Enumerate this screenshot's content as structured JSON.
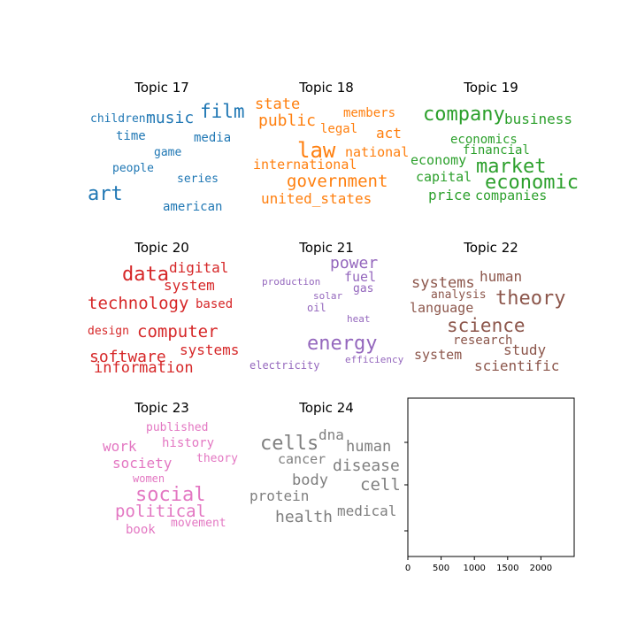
{
  "chart_data": {
    "type": "wordcloud",
    "panels": [
      {
        "title": "Topic 17",
        "color": "#1f77b4",
        "words": [
          {
            "text": "children"
          },
          {
            "text": "music"
          },
          {
            "text": "film"
          },
          {
            "text": "time"
          },
          {
            "text": "media"
          },
          {
            "text": "game"
          },
          {
            "text": "people"
          },
          {
            "text": "series"
          },
          {
            "text": "art"
          },
          {
            "text": "american"
          }
        ]
      },
      {
        "title": "Topic 18",
        "color": "#ff7f0e",
        "words": [
          {
            "text": "state"
          },
          {
            "text": "members"
          },
          {
            "text": "public"
          },
          {
            "text": "legal"
          },
          {
            "text": "act"
          },
          {
            "text": "law"
          },
          {
            "text": "national"
          },
          {
            "text": "international"
          },
          {
            "text": "government"
          },
          {
            "text": "united_states"
          }
        ]
      },
      {
        "title": "Topic 19",
        "color": "#2ca02c",
        "words": [
          {
            "text": "company"
          },
          {
            "text": "business"
          },
          {
            "text": "economics"
          },
          {
            "text": "financial"
          },
          {
            "text": "economy"
          },
          {
            "text": "market"
          },
          {
            "text": "capital"
          },
          {
            "text": "economic"
          },
          {
            "text": "price"
          },
          {
            "text": "companies"
          }
        ]
      },
      {
        "title": "Topic 20",
        "color": "#d62728",
        "words": [
          {
            "text": "data"
          },
          {
            "text": "digital"
          },
          {
            "text": "system"
          },
          {
            "text": "technology"
          },
          {
            "text": "based"
          },
          {
            "text": "design"
          },
          {
            "text": "computer"
          },
          {
            "text": "systems"
          },
          {
            "text": "software"
          },
          {
            "text": "information"
          }
        ]
      },
      {
        "title": "Topic 21",
        "color": "#9467bd",
        "words": [
          {
            "text": "power"
          },
          {
            "text": "production"
          },
          {
            "text": "fuel"
          },
          {
            "text": "gas"
          },
          {
            "text": "solar"
          },
          {
            "text": "oil"
          },
          {
            "text": "heat"
          },
          {
            "text": "energy"
          },
          {
            "text": "electricity"
          },
          {
            "text": "efficiency"
          }
        ]
      },
      {
        "title": "Topic 22",
        "color": "#8c564b",
        "words": [
          {
            "text": "human"
          },
          {
            "text": "systems"
          },
          {
            "text": "analysis"
          },
          {
            "text": "theory"
          },
          {
            "text": "language"
          },
          {
            "text": "science"
          },
          {
            "text": "research"
          },
          {
            "text": "study"
          },
          {
            "text": "system"
          },
          {
            "text": "scientific"
          }
        ]
      },
      {
        "title": "Topic 23",
        "color": "#e377c2",
        "words": [
          {
            "text": "published"
          },
          {
            "text": "history"
          },
          {
            "text": "work"
          },
          {
            "text": "theory"
          },
          {
            "text": "society"
          },
          {
            "text": "women"
          },
          {
            "text": "social"
          },
          {
            "text": "political"
          },
          {
            "text": "movement"
          },
          {
            "text": "book"
          }
        ]
      },
      {
        "title": "Topic 24",
        "color": "#7f7f7f",
        "words": [
          {
            "text": "dna"
          },
          {
            "text": "cells"
          },
          {
            "text": "human"
          },
          {
            "text": "cancer"
          },
          {
            "text": "disease"
          },
          {
            "text": "body"
          },
          {
            "text": "cell"
          },
          {
            "text": "protein"
          },
          {
            "text": "medical"
          },
          {
            "text": "health"
          }
        ]
      }
    ],
    "empty_axes": {
      "type": "empty",
      "xlim": [
        0,
        2500
      ],
      "xticks": [
        0,
        500,
        1000,
        1500,
        2000
      ],
      "xtick_labels": [
        "0",
        "500",
        "1000",
        "1500",
        "2000"
      ],
      "ytick_count": 3
    }
  }
}
